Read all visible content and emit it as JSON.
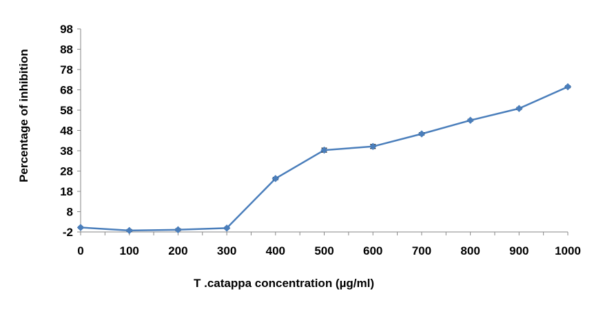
{
  "chart_data": {
    "type": "line",
    "title": "",
    "xlabel": "T .catappa concentration  (µg/ml)",
    "ylabel": "Percentage of  inhibition",
    "x": [
      0,
      100,
      200,
      300,
      400,
      500,
      600,
      700,
      800,
      900,
      1000
    ],
    "x_tick_labels": [
      "0",
      "100",
      "200",
      "300",
      "400",
      "500",
      "600",
      "700",
      "800",
      "900",
      "1000"
    ],
    "y_ticks": [
      -2,
      8,
      18,
      28,
      38,
      48,
      58,
      68,
      78,
      88,
      98
    ],
    "y_tick_labels": [
      "-2",
      "8",
      "18",
      "28",
      "38",
      "48",
      "58",
      "68",
      "78",
      "88",
      "98"
    ],
    "xlim": [
      0,
      1000
    ],
    "ylim": [
      -2,
      98
    ],
    "grid": false,
    "legend": "none",
    "series": [
      {
        "values": [
          0.2,
          -1.3,
          -0.9,
          -0.1,
          24.3,
          38.3,
          40.1,
          46.3,
          53.0,
          58.8,
          69.5
        ],
        "error": [
          0.4,
          0.5,
          0.5,
          0.4,
          0.6,
          1.0,
          1.0,
          0.6,
          0.5,
          0.5,
          0.5
        ],
        "color": "#4a7ebb",
        "marker": "diamond"
      }
    ]
  }
}
